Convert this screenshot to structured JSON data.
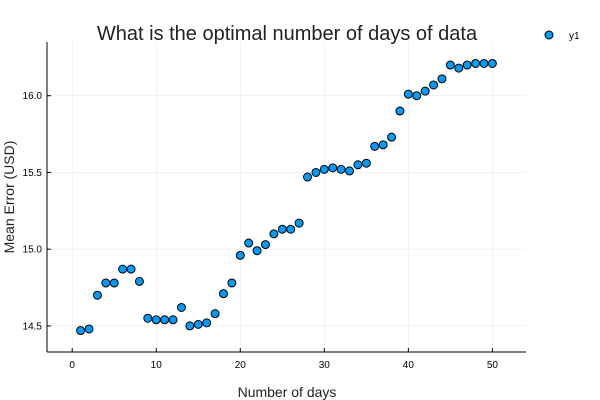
{
  "chart_data": {
    "type": "scatter",
    "title": "What is the optimal number of days of data",
    "xlabel": "Number of days",
    "ylabel": "Mean Error (USD)",
    "xlim": [
      -3,
      54
    ],
    "ylim": [
      14.33,
      16.35
    ],
    "xticks": [
      0,
      10,
      20,
      30,
      40,
      50
    ],
    "xtick_labels": [
      "0",
      "10",
      "20",
      "30",
      "40",
      "50"
    ],
    "yticks": [
      14.5,
      15.0,
      15.5,
      16.0
    ],
    "ytick_labels": [
      "14.5",
      "15.0",
      "15.5",
      "16.0"
    ],
    "grid": true,
    "legend": "top-right",
    "series": [
      {
        "name": "y1",
        "color": "#009af9",
        "x": [
          1,
          2,
          3,
          4,
          5,
          6,
          7,
          8,
          9,
          10,
          11,
          12,
          13,
          14,
          15,
          16,
          17,
          18,
          19,
          20,
          21,
          22,
          23,
          24,
          25,
          26,
          27,
          28,
          29,
          30,
          31,
          32,
          33,
          34,
          35,
          36,
          37,
          38,
          39,
          40,
          41,
          42,
          43,
          44,
          45,
          46,
          47,
          48,
          49,
          50
        ],
        "y": [
          14.47,
          14.48,
          14.7,
          14.78,
          14.78,
          14.87,
          14.87,
          14.79,
          14.55,
          14.54,
          14.54,
          14.54,
          14.62,
          14.5,
          14.51,
          14.52,
          14.58,
          14.71,
          14.78,
          14.96,
          15.04,
          14.99,
          15.03,
          15.1,
          15.13,
          15.13,
          15.17,
          15.47,
          15.5,
          15.52,
          15.53,
          15.52,
          15.51,
          15.55,
          15.56,
          15.67,
          15.68,
          15.73,
          15.9,
          16.01,
          16.0,
          16.03,
          16.07,
          16.11,
          16.2,
          16.18,
          16.2,
          16.21,
          16.21,
          16.21
        ]
      }
    ]
  }
}
